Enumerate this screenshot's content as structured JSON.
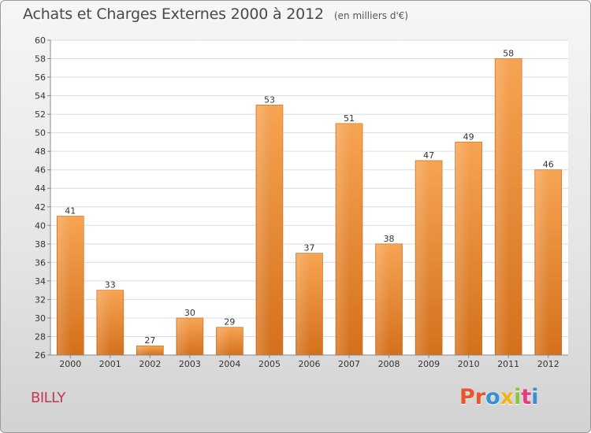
{
  "header": {
    "title": "Achats et Charges Externes 2000 à 2012",
    "unit": "(en milliers d'€)"
  },
  "footer": {
    "town": "BILLY",
    "logo_text": "Proxiti",
    "logo_colors": [
      "#e8542c",
      "#e8542c",
      "#3a8fd0",
      "#f1b21c",
      "#8bc43f",
      "#e83a7e",
      "#3a8fd0"
    ]
  },
  "chart_data": {
    "type": "bar",
    "categories": [
      "2000",
      "2001",
      "2002",
      "2003",
      "2004",
      "2005",
      "2006",
      "2007",
      "2008",
      "2009",
      "2010",
      "2011",
      "2012"
    ],
    "values": [
      41,
      33,
      27,
      30,
      29,
      53,
      37,
      51,
      38,
      47,
      49,
      58,
      46
    ],
    "title": "Achats et Charges Externes 2000 à 2012",
    "subtitle": "(en milliers d'€)",
    "xlabel": "",
    "ylabel": "",
    "ylim": [
      26,
      60
    ],
    "yticks": [
      26,
      28,
      30,
      32,
      34,
      36,
      38,
      40,
      42,
      44,
      46,
      48,
      50,
      52,
      54,
      56,
      58,
      60
    ],
    "grid": true,
    "data_labels": true,
    "bar_color": "#f0973d"
  }
}
